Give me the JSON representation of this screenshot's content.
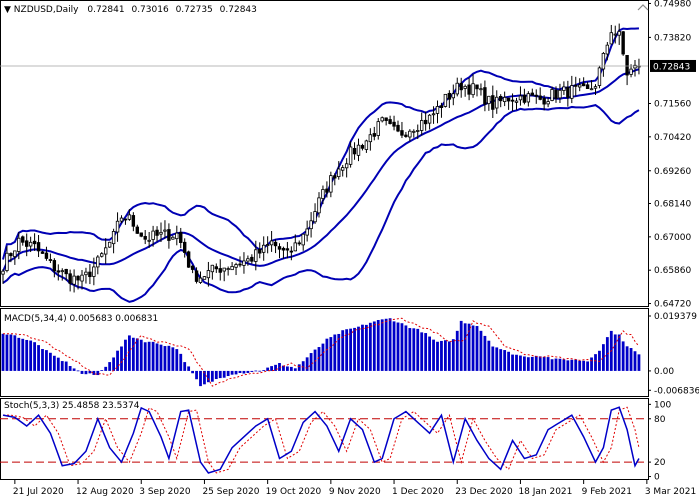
{
  "colors": {
    "candle": "#000000",
    "bands": "#0000b4",
    "macd_hist": "#0000c8",
    "macd_signal": "#e00000",
    "stoch_main": "#0000c8",
    "stoch_signal": "#e00000",
    "levels": "#c00000",
    "border": "#000000",
    "price_tag_bg": "#000000",
    "price_tag_fg": "#ffffff",
    "price_line": "#a0a0a0"
  },
  "chart_data": [
    {
      "type": "candlestick",
      "panel": "price",
      "title": "NZDUSD,Daily",
      "ohlc_header": [
        "0.72841",
        "0.73016",
        "0.72735",
        "0.72843"
      ],
      "current_price": 0.72843,
      "current_price_label": "0.72843",
      "ylim": [
        0.6467,
        0.7503
      ],
      "y_ticks": [
        "0.74980",
        "0.73820",
        "0.72660",
        "0.71560",
        "0.70420",
        "0.69260",
        "0.68140",
        "0.67000",
        "0.65860",
        "0.64720"
      ],
      "y_tick_values": [
        0.7498,
        0.7382,
        0.7266,
        0.7156,
        0.7042,
        0.6926,
        0.6814,
        0.67,
        0.6586,
        0.6472
      ],
      "x_tick_labels": [
        "21 Jul 2020",
        "12 Aug 2020",
        "3 Sep 2020",
        "25 Sep 2020",
        "19 Oct 2020",
        "9 Nov 2020",
        "1 Dec 2020",
        "23 Dec 2020",
        "18 Jan 2021",
        "9 Feb 2021",
        "3 Mar 2021"
      ],
      "x_tick_index": [
        3,
        19,
        35,
        51,
        67,
        83,
        99,
        115,
        131,
        147,
        163
      ],
      "close_path": [
        [
          0,
          0.6605
        ],
        [
          4,
          0.6685
        ],
        [
          8,
          0.6665
        ],
        [
          12,
          0.6605
        ],
        [
          16,
          0.6565
        ],
        [
          20,
          0.655
        ],
        [
          24,
          0.6612
        ],
        [
          28,
          0.67
        ],
        [
          30,
          0.677
        ],
        [
          32,
          0.676
        ],
        [
          36,
          0.6695
        ],
        [
          40,
          0.6705
        ],
        [
          44,
          0.671
        ],
        [
          46,
          0.665
        ],
        [
          48,
          0.657
        ],
        [
          50,
          0.6565
        ],
        [
          54,
          0.659
        ],
        [
          58,
          0.6605
        ],
        [
          62,
          0.662
        ],
        [
          66,
          0.6655
        ],
        [
          68,
          0.668
        ],
        [
          72,
          0.6635
        ],
        [
          76,
          0.6705
        ],
        [
          80,
          0.682
        ],
        [
          84,
          0.692
        ],
        [
          88,
          0.6985
        ],
        [
          92,
          0.703
        ],
        [
          96,
          0.709
        ],
        [
          100,
          0.705
        ],
        [
          104,
          0.708
        ],
        [
          108,
          0.7105
        ],
        [
          112,
          0.717
        ],
        [
          116,
          0.722
        ],
        [
          120,
          0.72
        ],
        [
          124,
          0.715
        ],
        [
          128,
          0.7175
        ],
        [
          132,
          0.718
        ],
        [
          136,
          0.717
        ],
        [
          140,
          0.719
        ],
        [
          144,
          0.72
        ],
        [
          148,
          0.7195
        ],
        [
          150,
          0.7225
        ],
        [
          152,
          0.731
        ],
        [
          154,
          0.741
        ],
        [
          156,
          0.7385
        ],
        [
          158,
          0.726
        ],
        [
          161,
          0.7284
        ]
      ]
    },
    {
      "type": "bar",
      "panel": "macd",
      "title": "MACD(5,34,4) 0.005683 0.006831",
      "params": "5,34,4",
      "values_label": [
        "0.005683",
        "0.006831"
      ],
      "ylim": [
        -0.0085,
        0.0215
      ],
      "y_ticks": [
        "0.019379",
        "0.00",
        "-0.006836"
      ],
      "y_tick_values": [
        0.019379,
        0.0,
        -0.006836
      ],
      "hist_path": [
        [
          0,
          0.0135
        ],
        [
          4,
          0.012
        ],
        [
          8,
          0.01
        ],
        [
          12,
          0.006
        ],
        [
          16,
          0.003
        ],
        [
          20,
          -0.001
        ],
        [
          24,
          -0.0015
        ],
        [
          28,
          0.005
        ],
        [
          32,
          0.0125
        ],
        [
          36,
          0.0105
        ],
        [
          40,
          0.0095
        ],
        [
          44,
          0.008
        ],
        [
          48,
          -0.001
        ],
        [
          50,
          -0.0055
        ],
        [
          54,
          -0.003
        ],
        [
          58,
          -0.001
        ],
        [
          62,
          -0.0005
        ],
        [
          66,
          0.0005
        ],
        [
          70,
          0.0025
        ],
        [
          74,
          0.001
        ],
        [
          78,
          0.006
        ],
        [
          82,
          0.011
        ],
        [
          86,
          0.014
        ],
        [
          90,
          0.0155
        ],
        [
          94,
          0.0175
        ],
        [
          98,
          0.0185
        ],
        [
          102,
          0.016
        ],
        [
          106,
          0.014
        ],
        [
          110,
          0.01
        ],
        [
          114,
          0.011
        ],
        [
          116,
          0.0175
        ],
        [
          120,
          0.016
        ],
        [
          124,
          0.009
        ],
        [
          128,
          0.0065
        ],
        [
          132,
          0.005
        ],
        [
          136,
          0.0055
        ],
        [
          140,
          0.004
        ],
        [
          144,
          0.004
        ],
        [
          148,
          0.0035
        ],
        [
          151,
          0.0075
        ],
        [
          154,
          0.014
        ],
        [
          156,
          0.0125
        ],
        [
          158,
          0.009
        ],
        [
          161,
          0.0057
        ]
      ],
      "signal_lag": 3
    },
    {
      "type": "line",
      "panel": "stochastic",
      "title": "Stoch(5,3,3) 25.4858 23.5374",
      "params": "5,3,3",
      "values_label": [
        "25.4858",
        "23.5374"
      ],
      "ylim": [
        -2,
        106
      ],
      "y_ticks": [
        "100",
        "80",
        "20",
        "0"
      ],
      "y_tick_values": [
        100,
        80,
        20,
        0
      ],
      "levels": [
        80,
        20
      ],
      "main_path": [
        [
          0,
          85
        ],
        [
          3,
          82
        ],
        [
          6,
          70
        ],
        [
          9,
          85
        ],
        [
          12,
          60
        ],
        [
          15,
          15
        ],
        [
          18,
          18
        ],
        [
          21,
          35
        ],
        [
          24,
          80
        ],
        [
          27,
          40
        ],
        [
          30,
          20
        ],
        [
          33,
          60
        ],
        [
          35,
          95
        ],
        [
          37,
          90
        ],
        [
          40,
          55
        ],
        [
          42,
          25
        ],
        [
          45,
          90
        ],
        [
          47,
          92
        ],
        [
          50,
          20
        ],
        [
          52,
          5
        ],
        [
          55,
          10
        ],
        [
          58,
          40
        ],
        [
          61,
          55
        ],
        [
          64,
          70
        ],
        [
          67,
          80
        ],
        [
          70,
          25
        ],
        [
          73,
          35
        ],
        [
          76,
          75
        ],
        [
          79,
          90
        ],
        [
          82,
          70
        ],
        [
          85,
          35
        ],
        [
          88,
          80
        ],
        [
          91,
          65
        ],
        [
          94,
          20
        ],
        [
          96,
          25
        ],
        [
          99,
          80
        ],
        [
          102,
          90
        ],
        [
          105,
          75
        ],
        [
          108,
          60
        ],
        [
          111,
          85
        ],
        [
          114,
          20
        ],
        [
          117,
          80
        ],
        [
          120,
          50
        ],
        [
          123,
          25
        ],
        [
          126,
          10
        ],
        [
          129,
          50
        ],
        [
          132,
          25
        ],
        [
          135,
          30
        ],
        [
          138,
          65
        ],
        [
          141,
          75
        ],
        [
          144,
          85
        ],
        [
          147,
          55
        ],
        [
          150,
          20
        ],
        [
          152,
          40
        ],
        [
          154,
          92
        ],
        [
          156,
          96
        ],
        [
          158,
          65
        ],
        [
          160,
          15
        ],
        [
          161,
          25
        ]
      ],
      "signal_lag": 2
    }
  ]
}
